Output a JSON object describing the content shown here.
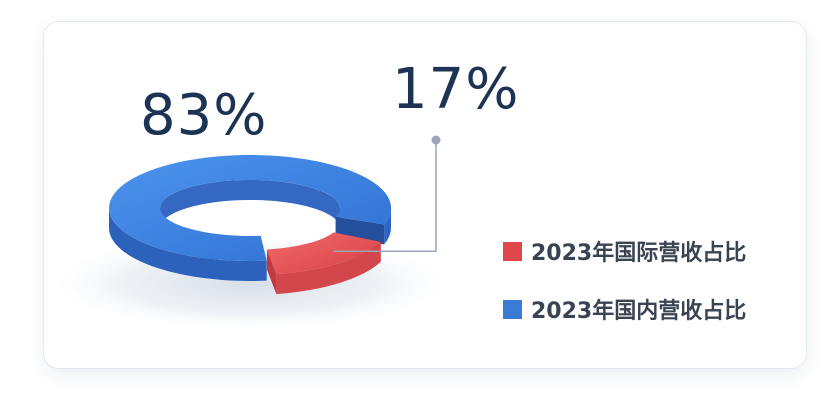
{
  "chart_data": {
    "type": "pie",
    "donut": true,
    "style": "3d",
    "slices": [
      {
        "label": "2023年国际营收占比",
        "value": 17,
        "value_label": "17%",
        "color": "#e0474a"
      },
      {
        "label": "2023年国内营收占比",
        "value": 83,
        "value_label": "83%",
        "color": "#3a7bd5"
      }
    ],
    "legend_position": "right"
  }
}
